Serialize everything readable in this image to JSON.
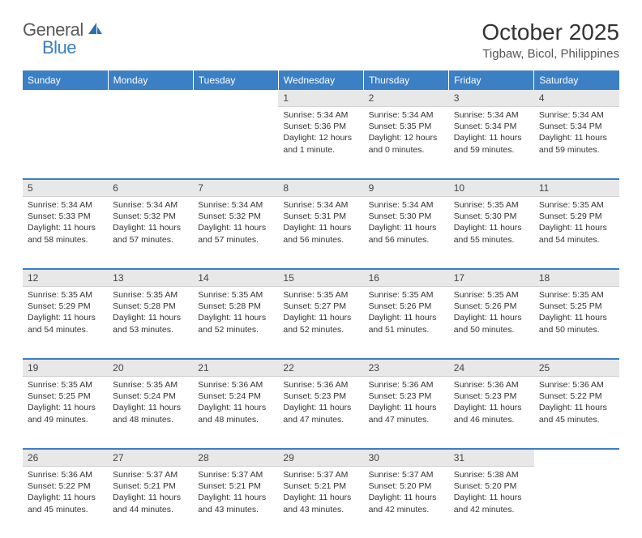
{
  "logo": {
    "general": "General",
    "blue": "Blue"
  },
  "title": "October 2025",
  "location": "Tigbaw, Bicol, Philippines",
  "colors": {
    "header_bg": "#3b7fc4",
    "header_text": "#ffffff",
    "daynum_bg": "#e8e8e8",
    "sep": "#3b7fc4",
    "page_bg": "#ffffff"
  },
  "dayNames": [
    "Sunday",
    "Monday",
    "Tuesday",
    "Wednesday",
    "Thursday",
    "Friday",
    "Saturday"
  ],
  "weeks": [
    [
      null,
      null,
      null,
      {
        "n": "1",
        "sr": "Sunrise: 5:34 AM",
        "ss": "Sunset: 5:36 PM",
        "dl": "Daylight: 12 hours and 1 minute."
      },
      {
        "n": "2",
        "sr": "Sunrise: 5:34 AM",
        "ss": "Sunset: 5:35 PM",
        "dl": "Daylight: 12 hours and 0 minutes."
      },
      {
        "n": "3",
        "sr": "Sunrise: 5:34 AM",
        "ss": "Sunset: 5:34 PM",
        "dl": "Daylight: 11 hours and 59 minutes."
      },
      {
        "n": "4",
        "sr": "Sunrise: 5:34 AM",
        "ss": "Sunset: 5:34 PM",
        "dl": "Daylight: 11 hours and 59 minutes."
      }
    ],
    [
      {
        "n": "5",
        "sr": "Sunrise: 5:34 AM",
        "ss": "Sunset: 5:33 PM",
        "dl": "Daylight: 11 hours and 58 minutes."
      },
      {
        "n": "6",
        "sr": "Sunrise: 5:34 AM",
        "ss": "Sunset: 5:32 PM",
        "dl": "Daylight: 11 hours and 57 minutes."
      },
      {
        "n": "7",
        "sr": "Sunrise: 5:34 AM",
        "ss": "Sunset: 5:32 PM",
        "dl": "Daylight: 11 hours and 57 minutes."
      },
      {
        "n": "8",
        "sr": "Sunrise: 5:34 AM",
        "ss": "Sunset: 5:31 PM",
        "dl": "Daylight: 11 hours and 56 minutes."
      },
      {
        "n": "9",
        "sr": "Sunrise: 5:34 AM",
        "ss": "Sunset: 5:30 PM",
        "dl": "Daylight: 11 hours and 56 minutes."
      },
      {
        "n": "10",
        "sr": "Sunrise: 5:35 AM",
        "ss": "Sunset: 5:30 PM",
        "dl": "Daylight: 11 hours and 55 minutes."
      },
      {
        "n": "11",
        "sr": "Sunrise: 5:35 AM",
        "ss": "Sunset: 5:29 PM",
        "dl": "Daylight: 11 hours and 54 minutes."
      }
    ],
    [
      {
        "n": "12",
        "sr": "Sunrise: 5:35 AM",
        "ss": "Sunset: 5:29 PM",
        "dl": "Daylight: 11 hours and 54 minutes."
      },
      {
        "n": "13",
        "sr": "Sunrise: 5:35 AM",
        "ss": "Sunset: 5:28 PM",
        "dl": "Daylight: 11 hours and 53 minutes."
      },
      {
        "n": "14",
        "sr": "Sunrise: 5:35 AM",
        "ss": "Sunset: 5:28 PM",
        "dl": "Daylight: 11 hours and 52 minutes."
      },
      {
        "n": "15",
        "sr": "Sunrise: 5:35 AM",
        "ss": "Sunset: 5:27 PM",
        "dl": "Daylight: 11 hours and 52 minutes."
      },
      {
        "n": "16",
        "sr": "Sunrise: 5:35 AM",
        "ss": "Sunset: 5:26 PM",
        "dl": "Daylight: 11 hours and 51 minutes."
      },
      {
        "n": "17",
        "sr": "Sunrise: 5:35 AM",
        "ss": "Sunset: 5:26 PM",
        "dl": "Daylight: 11 hours and 50 minutes."
      },
      {
        "n": "18",
        "sr": "Sunrise: 5:35 AM",
        "ss": "Sunset: 5:25 PM",
        "dl": "Daylight: 11 hours and 50 minutes."
      }
    ],
    [
      {
        "n": "19",
        "sr": "Sunrise: 5:35 AM",
        "ss": "Sunset: 5:25 PM",
        "dl": "Daylight: 11 hours and 49 minutes."
      },
      {
        "n": "20",
        "sr": "Sunrise: 5:35 AM",
        "ss": "Sunset: 5:24 PM",
        "dl": "Daylight: 11 hours and 48 minutes."
      },
      {
        "n": "21",
        "sr": "Sunrise: 5:36 AM",
        "ss": "Sunset: 5:24 PM",
        "dl": "Daylight: 11 hours and 48 minutes."
      },
      {
        "n": "22",
        "sr": "Sunrise: 5:36 AM",
        "ss": "Sunset: 5:23 PM",
        "dl": "Daylight: 11 hours and 47 minutes."
      },
      {
        "n": "23",
        "sr": "Sunrise: 5:36 AM",
        "ss": "Sunset: 5:23 PM",
        "dl": "Daylight: 11 hours and 47 minutes."
      },
      {
        "n": "24",
        "sr": "Sunrise: 5:36 AM",
        "ss": "Sunset: 5:23 PM",
        "dl": "Daylight: 11 hours and 46 minutes."
      },
      {
        "n": "25",
        "sr": "Sunrise: 5:36 AM",
        "ss": "Sunset: 5:22 PM",
        "dl": "Daylight: 11 hours and 45 minutes."
      }
    ],
    [
      {
        "n": "26",
        "sr": "Sunrise: 5:36 AM",
        "ss": "Sunset: 5:22 PM",
        "dl": "Daylight: 11 hours and 45 minutes."
      },
      {
        "n": "27",
        "sr": "Sunrise: 5:37 AM",
        "ss": "Sunset: 5:21 PM",
        "dl": "Daylight: 11 hours and 44 minutes."
      },
      {
        "n": "28",
        "sr": "Sunrise: 5:37 AM",
        "ss": "Sunset: 5:21 PM",
        "dl": "Daylight: 11 hours and 43 minutes."
      },
      {
        "n": "29",
        "sr": "Sunrise: 5:37 AM",
        "ss": "Sunset: 5:21 PM",
        "dl": "Daylight: 11 hours and 43 minutes."
      },
      {
        "n": "30",
        "sr": "Sunrise: 5:37 AM",
        "ss": "Sunset: 5:20 PM",
        "dl": "Daylight: 11 hours and 42 minutes."
      },
      {
        "n": "31",
        "sr": "Sunrise: 5:38 AM",
        "ss": "Sunset: 5:20 PM",
        "dl": "Daylight: 11 hours and 42 minutes."
      },
      null
    ]
  ]
}
